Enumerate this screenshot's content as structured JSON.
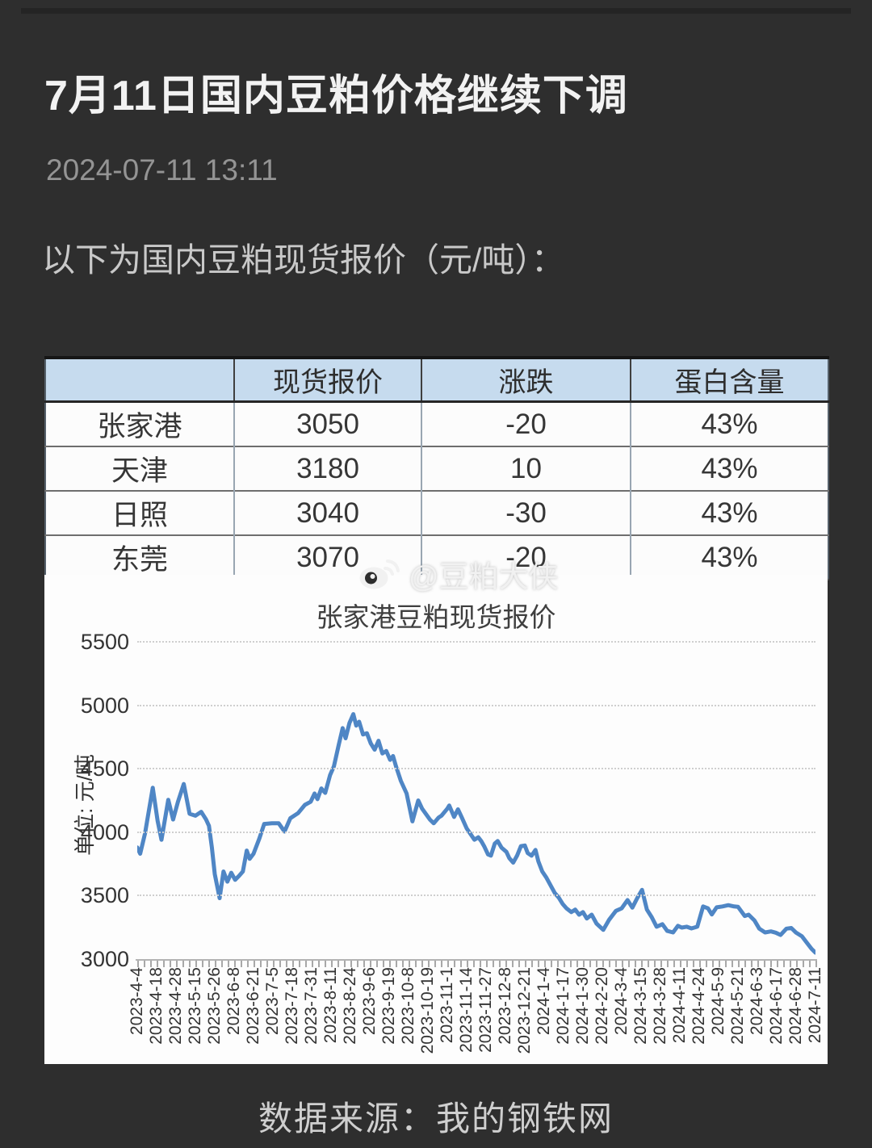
{
  "page": {
    "title": "7月11日国内豆粕价格继续下调",
    "date": "2024-07-11 13:11",
    "intro": "以下为国内豆粕现货报价（元/吨）：",
    "watermark": "@豆粕大侠",
    "footer": "数据来源：我的钢铁网"
  },
  "colors": {
    "background": "#2e2e2e",
    "table_header_bg": "#c6dbee",
    "line": "#4f86c5",
    "panel_bg": "#fdfdfd"
  },
  "table": {
    "headers": [
      "",
      "现货报价",
      "涨跌",
      "蛋白含量"
    ],
    "rows": [
      {
        "city": "张家港",
        "price": "3050",
        "change": "-20",
        "protein": "43%"
      },
      {
        "city": "天津",
        "price": "3180",
        "change": "10",
        "protein": "43%"
      },
      {
        "city": "日照",
        "price": "3040",
        "change": "-30",
        "protein": "43%"
      },
      {
        "city": "东莞",
        "price": "3070",
        "change": "-20",
        "protein": "43%"
      }
    ]
  },
  "chart_data": {
    "type": "line",
    "title": "张家港豆粕现货报价",
    "ylabel": "单位: 元/吨",
    "ylim": [
      3000,
      5500
    ],
    "yticks": [
      5500,
      5000,
      4500,
      4000,
      3500,
      3000
    ],
    "grid": "dotted horizontal",
    "legend": "none",
    "line_color": "#4f86c5",
    "x_labels": [
      "2023-4-4",
      "2023-4-18",
      "2023-4-28",
      "2023-5-15",
      "2023-5-26",
      "2023-6-8",
      "2023-6-21",
      "2023-7-5",
      "2023-7-18",
      "2023-7-31",
      "2023-8-11",
      "2023-8-24",
      "2023-9-6",
      "2023-9-19",
      "2023-10-8",
      "2023-10-19",
      "2023-11-1",
      "2023-11-14",
      "2023-11-27",
      "2023-12-8",
      "2023-12-21",
      "2024-1-4",
      "2024-1-17",
      "2024-1-30",
      "2024-2-20",
      "2024-3-4",
      "2024-3-15",
      "2024-3-28",
      "2024-4-11",
      "2024-4-24",
      "2024-5-9",
      "2024-5-21",
      "2024-6-3",
      "2024-6-17",
      "2024-6-28",
      "2024-7-11"
    ],
    "series": [
      {
        "name": "张家港豆粕现货报价",
        "points": [
          [
            0,
            3880
          ],
          [
            0.15,
            3830
          ],
          [
            0.4,
            3990
          ],
          [
            0.8,
            4350
          ],
          [
            1.05,
            4090
          ],
          [
            1.25,
            3940
          ],
          [
            1.6,
            4255
          ],
          [
            1.85,
            4100
          ],
          [
            2.1,
            4240
          ],
          [
            2.4,
            4380
          ],
          [
            2.7,
            4145
          ],
          [
            3.0,
            4130
          ],
          [
            3.3,
            4160
          ],
          [
            3.55,
            4100
          ],
          [
            3.7,
            4050
          ],
          [
            3.85,
            3880
          ],
          [
            4.0,
            3670
          ],
          [
            4.25,
            3480
          ],
          [
            4.45,
            3690
          ],
          [
            4.65,
            3610
          ],
          [
            4.85,
            3680
          ],
          [
            5.05,
            3625
          ],
          [
            5.25,
            3655
          ],
          [
            5.45,
            3690
          ],
          [
            5.65,
            3855
          ],
          [
            5.8,
            3790
          ],
          [
            6.0,
            3830
          ],
          [
            6.3,
            3950
          ],
          [
            6.55,
            4065
          ],
          [
            6.95,
            4070
          ],
          [
            7.3,
            4070
          ],
          [
            7.6,
            4005
          ],
          [
            7.9,
            4110
          ],
          [
            8.3,
            4150
          ],
          [
            8.65,
            4215
          ],
          [
            8.95,
            4240
          ],
          [
            9.15,
            4305
          ],
          [
            9.3,
            4260
          ],
          [
            9.5,
            4345
          ],
          [
            9.7,
            4310
          ],
          [
            9.95,
            4450
          ],
          [
            10.15,
            4520
          ],
          [
            10.4,
            4690
          ],
          [
            10.6,
            4820
          ],
          [
            10.75,
            4740
          ],
          [
            10.95,
            4860
          ],
          [
            11.15,
            4930
          ],
          [
            11.3,
            4840
          ],
          [
            11.45,
            4870
          ],
          [
            11.65,
            4770
          ],
          [
            11.85,
            4780
          ],
          [
            12.05,
            4700
          ],
          [
            12.25,
            4650
          ],
          [
            12.45,
            4720
          ],
          [
            12.65,
            4620
          ],
          [
            12.85,
            4640
          ],
          [
            13.05,
            4570
          ],
          [
            13.2,
            4600
          ],
          [
            13.35,
            4520
          ],
          [
            13.6,
            4405
          ],
          [
            13.9,
            4305
          ],
          [
            14.2,
            4085
          ],
          [
            14.5,
            4250
          ],
          [
            14.7,
            4185
          ],
          [
            15.1,
            4100
          ],
          [
            15.3,
            4070
          ],
          [
            15.55,
            4115
          ],
          [
            15.7,
            4130
          ],
          [
            16.0,
            4185
          ],
          [
            16.1,
            4210
          ],
          [
            16.35,
            4120
          ],
          [
            16.55,
            4180
          ],
          [
            16.75,
            4115
          ],
          [
            17.0,
            4030
          ],
          [
            17.4,
            3940
          ],
          [
            17.6,
            3960
          ],
          [
            17.75,
            3930
          ],
          [
            17.9,
            3890
          ],
          [
            18.1,
            3825
          ],
          [
            18.25,
            3815
          ],
          [
            18.45,
            3910
          ],
          [
            18.6,
            3930
          ],
          [
            18.8,
            3878
          ],
          [
            19.05,
            3845
          ],
          [
            19.2,
            3795
          ],
          [
            19.4,
            3760
          ],
          [
            19.6,
            3815
          ],
          [
            19.8,
            3890
          ],
          [
            20.0,
            3895
          ],
          [
            20.15,
            3835
          ],
          [
            20.35,
            3815
          ],
          [
            20.55,
            3860
          ],
          [
            20.7,
            3770
          ],
          [
            20.9,
            3690
          ],
          [
            21.1,
            3645
          ],
          [
            21.35,
            3575
          ],
          [
            21.55,
            3520
          ],
          [
            21.75,
            3485
          ],
          [
            21.95,
            3435
          ],
          [
            22.15,
            3400
          ],
          [
            22.4,
            3370
          ],
          [
            22.6,
            3390
          ],
          [
            22.8,
            3350
          ],
          [
            23.0,
            3370
          ],
          [
            23.2,
            3320
          ],
          [
            23.45,
            3350
          ],
          [
            23.7,
            3280
          ],
          [
            24.05,
            3230
          ],
          [
            24.35,
            3310
          ],
          [
            24.7,
            3380
          ],
          [
            25.0,
            3400
          ],
          [
            25.3,
            3465
          ],
          [
            25.55,
            3405
          ],
          [
            25.8,
            3480
          ],
          [
            26.05,
            3545
          ],
          [
            26.3,
            3390
          ],
          [
            26.55,
            3330
          ],
          [
            26.8,
            3255
          ],
          [
            27.1,
            3275
          ],
          [
            27.35,
            3222
          ],
          [
            27.65,
            3210
          ],
          [
            27.9,
            3262
          ],
          [
            28.1,
            3248
          ],
          [
            28.35,
            3255
          ],
          [
            28.6,
            3242
          ],
          [
            28.9,
            3255
          ],
          [
            29.2,
            3415
          ],
          [
            29.45,
            3400
          ],
          [
            29.65,
            3352
          ],
          [
            29.9,
            3408
          ],
          [
            30.2,
            3415
          ],
          [
            30.5,
            3425
          ],
          [
            30.8,
            3415
          ],
          [
            31.0,
            3412
          ],
          [
            31.35,
            3340
          ],
          [
            31.55,
            3350
          ],
          [
            31.85,
            3305
          ],
          [
            32.1,
            3240
          ],
          [
            32.4,
            3210
          ],
          [
            32.7,
            3218
          ],
          [
            32.95,
            3208
          ],
          [
            33.2,
            3190
          ],
          [
            33.5,
            3240
          ],
          [
            33.75,
            3245
          ],
          [
            34.0,
            3208
          ],
          [
            34.3,
            3180
          ],
          [
            34.55,
            3130
          ],
          [
            34.8,
            3080
          ],
          [
            35.0,
            3050
          ]
        ]
      }
    ]
  }
}
